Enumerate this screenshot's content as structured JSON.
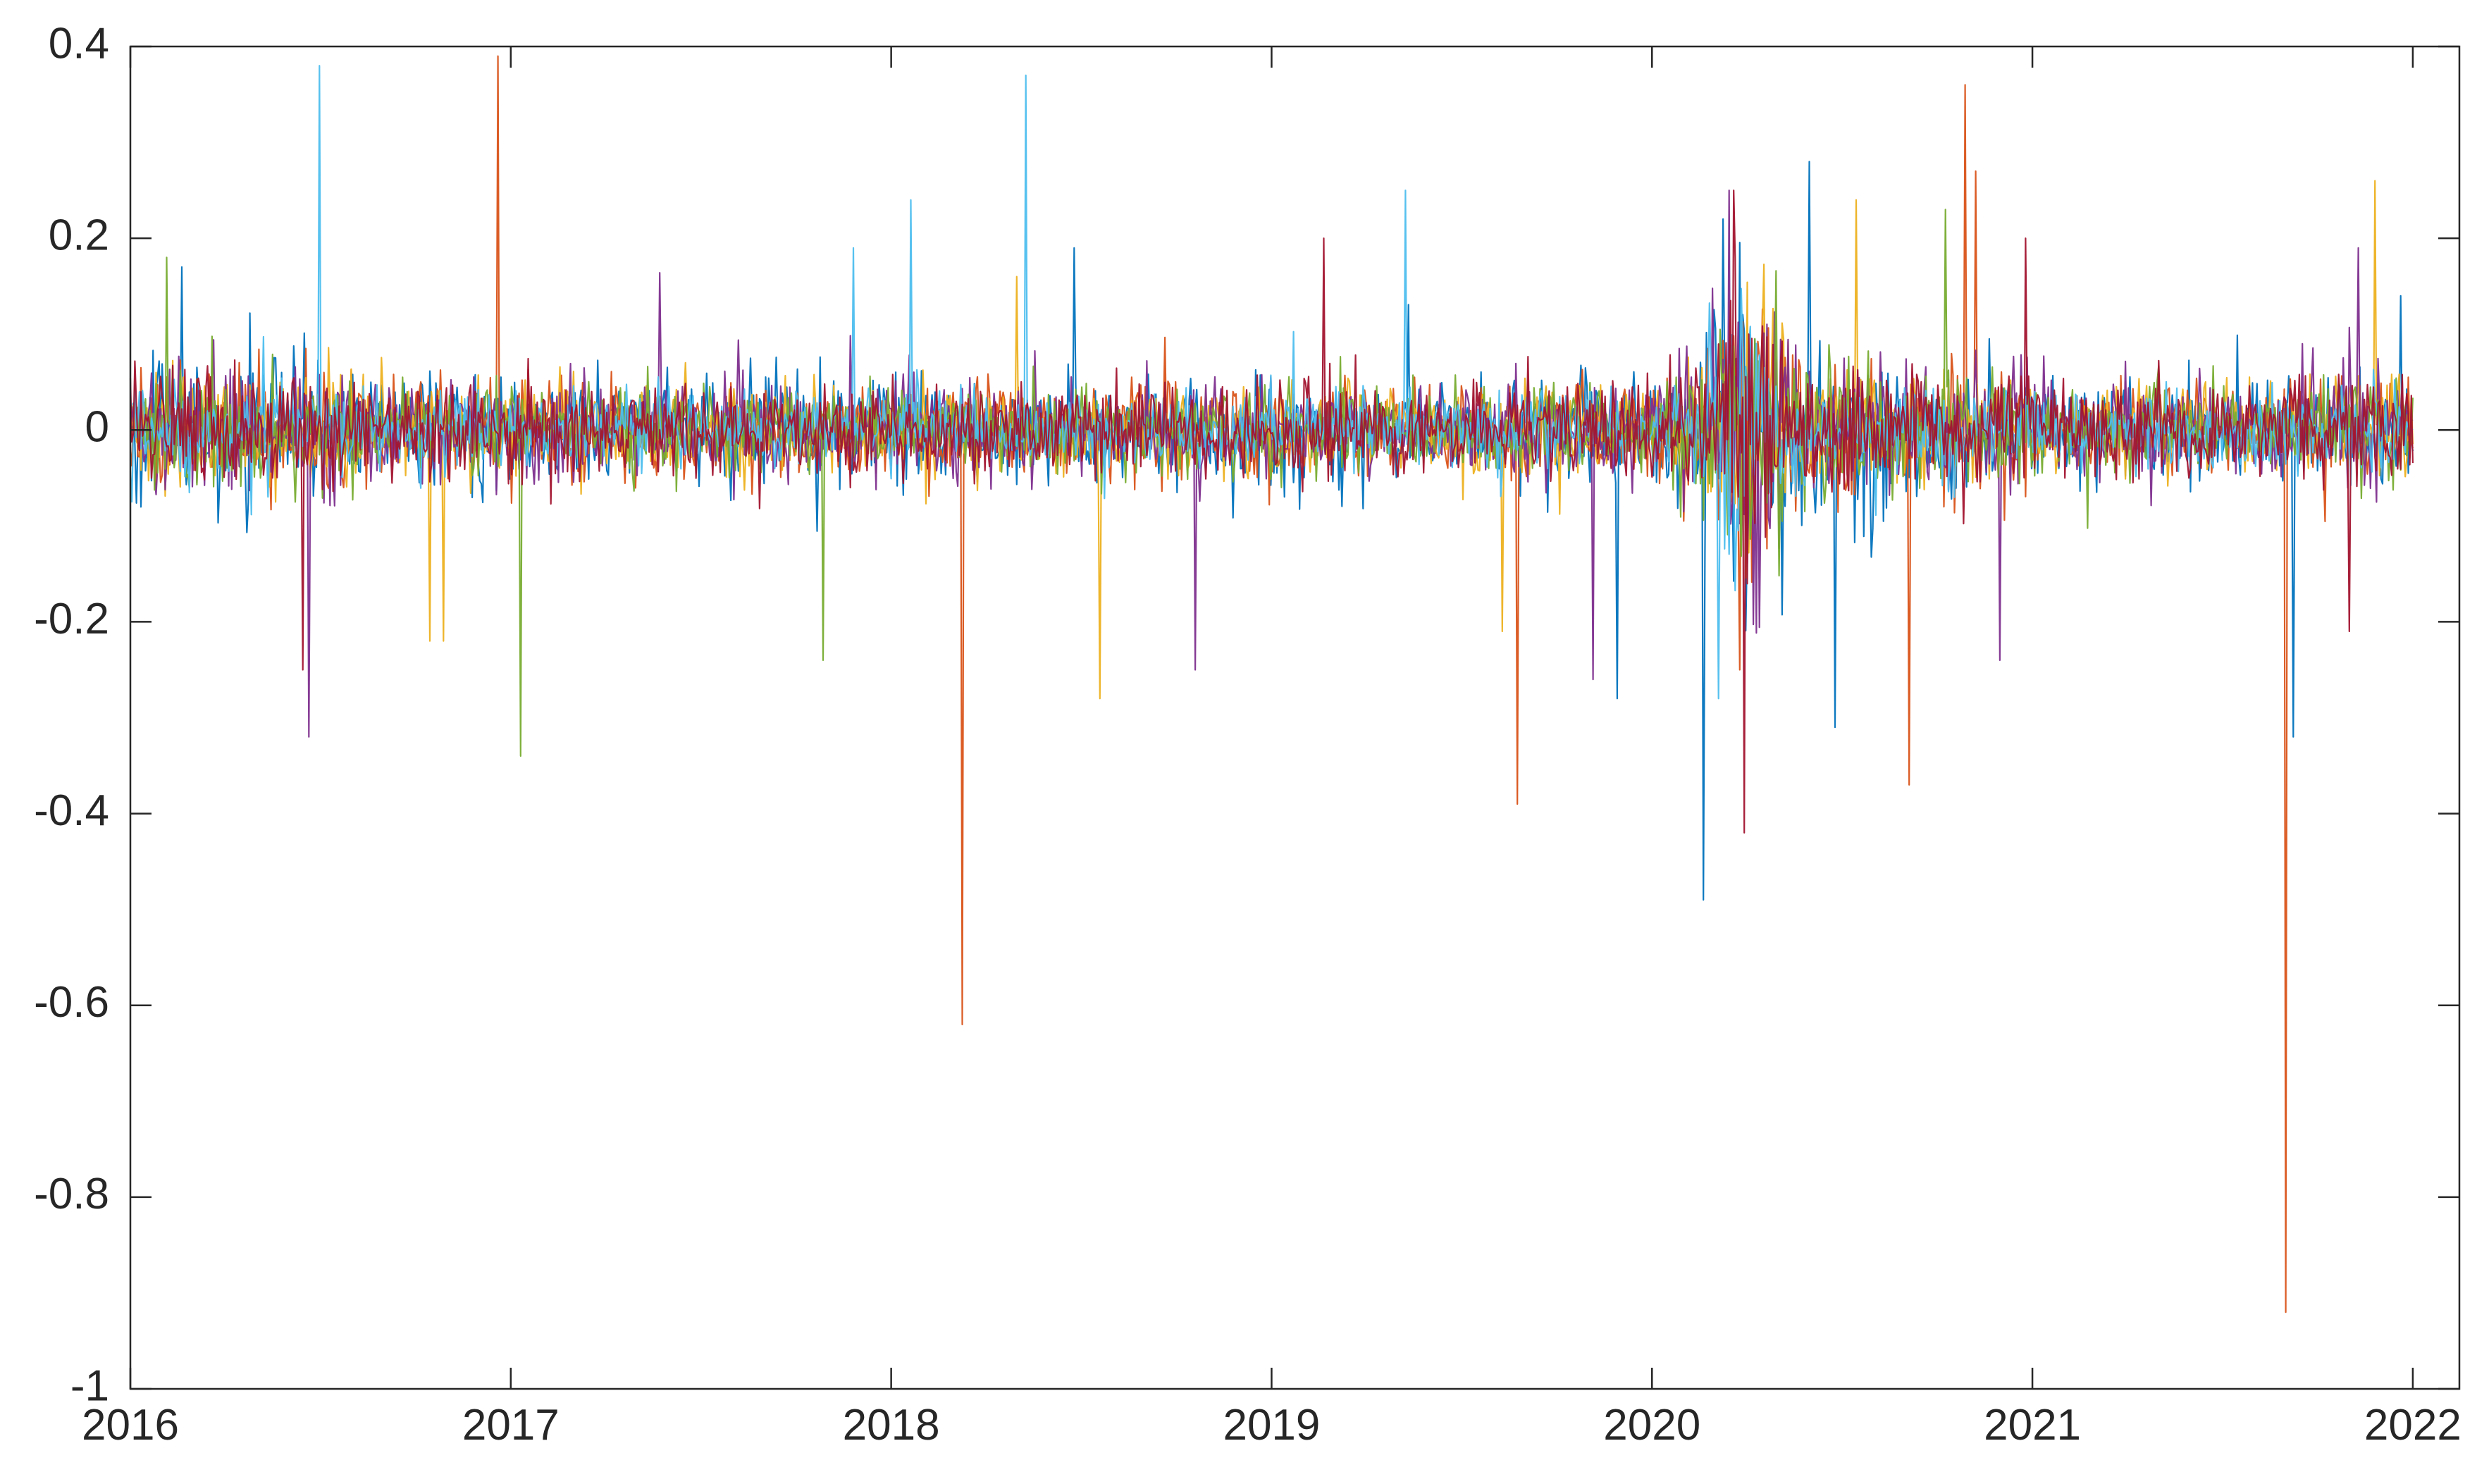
{
  "chart_data": {
    "type": "line",
    "title": "",
    "xlabel": "",
    "ylabel": "",
    "xlim": [
      "2016-01-01",
      "2022-01-01"
    ],
    "ylim": [
      -1,
      0.4
    ],
    "x_ticks": [
      "2016",
      "2017",
      "2018",
      "2019",
      "2020",
      "2021",
      "2022"
    ],
    "y_ticks": [
      "0.4",
      "0.2",
      "0",
      "-0.2",
      "-0.4",
      "-0.6",
      "-0.8",
      "-1"
    ],
    "y_tick_values": [
      0.4,
      0.2,
      0,
      -0.2,
      -0.4,
      -0.6,
      -0.8,
      -1
    ],
    "grid": false,
    "legend": "none",
    "colors": [
      "#0072BD",
      "#D95319",
      "#EDB120",
      "#7E2F8E",
      "#77AC30",
      "#4DBEEE",
      "#A2142F"
    ],
    "series": [
      {
        "color": "#0072BD",
        "baseline_amplitude": 0.05,
        "spikes": [
          {
            "x": "2018-06-25",
            "y": 0.19
          },
          {
            "x": "2019-11-28",
            "y": -0.28
          },
          {
            "x": "2020-02-20",
            "y": -0.49
          },
          {
            "x": "2020-03-10",
            "y": 0.22
          },
          {
            "x": "2020-06-01",
            "y": 0.28
          },
          {
            "x": "2020-06-25",
            "y": -0.31
          },
          {
            "x": "2021-09-08",
            "y": -0.32
          },
          {
            "x": "2016-02-20",
            "y": 0.17
          },
          {
            "x": "2021-12-20",
            "y": 0.14
          }
        ]
      },
      {
        "color": "#D95319",
        "baseline_amplitude": 0.045,
        "spikes": [
          {
            "x": "2016-12-20",
            "y": 0.39
          },
          {
            "x": "2018-03-10",
            "y": -0.62
          },
          {
            "x": "2019-08-25",
            "y": -0.39
          },
          {
            "x": "2020-09-05",
            "y": -0.37
          },
          {
            "x": "2020-10-28",
            "y": 0.36
          },
          {
            "x": "2020-11-08",
            "y": 0.27
          },
          {
            "x": "2021-09-01",
            "y": -0.92
          },
          {
            "x": "2020-03-25",
            "y": -0.25
          }
        ]
      },
      {
        "color": "#EDB120",
        "baseline_amplitude": 0.04,
        "spikes": [
          {
            "x": "2016-10-15",
            "y": -0.22
          },
          {
            "x": "2016-10-28",
            "y": -0.22
          },
          {
            "x": "2018-07-20",
            "y": -0.28
          },
          {
            "x": "2018-05-01",
            "y": 0.16
          },
          {
            "x": "2019-08-10",
            "y": -0.21
          },
          {
            "x": "2021-11-25",
            "y": 0.26
          },
          {
            "x": "2020-07-15",
            "y": 0.24
          }
        ]
      },
      {
        "color": "#7E2F8E",
        "baseline_amplitude": 0.045,
        "spikes": [
          {
            "x": "2016-06-20",
            "y": -0.32
          },
          {
            "x": "2018-10-20",
            "y": -0.25
          },
          {
            "x": "2019-11-05",
            "y": -0.26
          },
          {
            "x": "2020-03-15",
            "y": 0.25
          },
          {
            "x": "2020-12-01",
            "y": -0.24
          },
          {
            "x": "2021-11-10",
            "y": 0.19
          }
        ]
      },
      {
        "color": "#77AC30",
        "baseline_amplitude": 0.04,
        "spikes": [
          {
            "x": "2017-01-10",
            "y": -0.34
          },
          {
            "x": "2017-10-28",
            "y": -0.24
          },
          {
            "x": "2020-10-10",
            "y": 0.23
          },
          {
            "x": "2016-02-05",
            "y": 0.18
          }
        ]
      },
      {
        "color": "#4DBEEE",
        "baseline_amplitude": 0.035,
        "spikes": [
          {
            "x": "2016-07-01",
            "y": 0.38
          },
          {
            "x": "2018-05-10",
            "y": 0.37
          },
          {
            "x": "2018-01-20",
            "y": 0.24
          },
          {
            "x": "2019-05-10",
            "y": 0.25
          },
          {
            "x": "2017-11-25",
            "y": 0.19
          },
          {
            "x": "2020-03-05",
            "y": -0.28
          }
        ]
      },
      {
        "color": "#A2142F",
        "baseline_amplitude": 0.045,
        "spikes": [
          {
            "x": "2016-06-15",
            "y": -0.25
          },
          {
            "x": "2019-02-20",
            "y": 0.2
          },
          {
            "x": "2020-03-30",
            "y": -0.42
          },
          {
            "x": "2020-03-20",
            "y": 0.25
          },
          {
            "x": "2020-12-25",
            "y": 0.2
          },
          {
            "x": "2021-11-01",
            "y": -0.21
          }
        ]
      }
    ]
  }
}
